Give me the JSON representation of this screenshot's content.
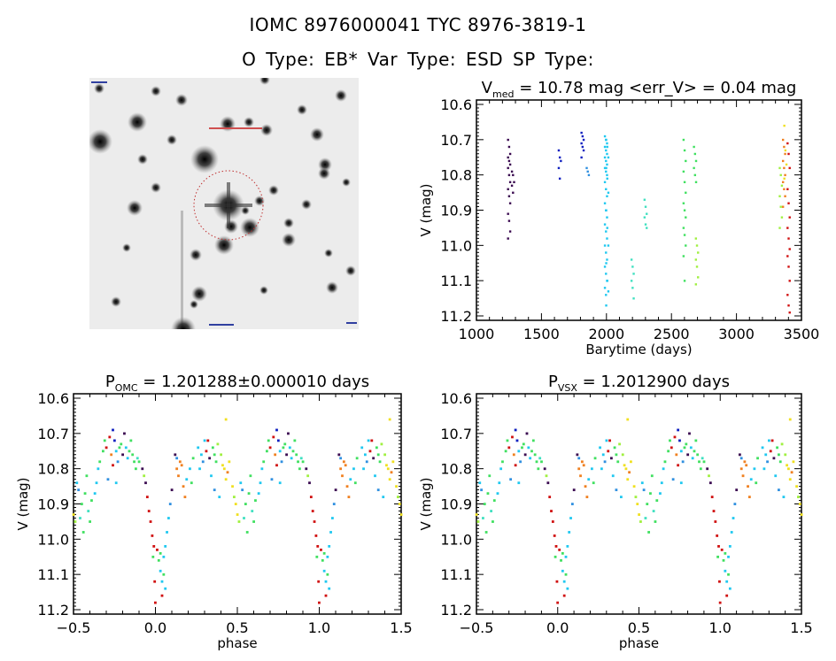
{
  "header": {
    "title_line1": "IOMC 8976000041    TYC 8976-3819-1",
    "title_line2": "O Type: EB*  Var Type: ESD  SP Type:"
  },
  "image_panel": {
    "description_label": "finding chart with target circled"
  },
  "colors": [
    "#3a0a50",
    "#1020c0",
    "#20c8f0",
    "#3090e0",
    "#40e0c0",
    "#40e060",
    "#a0f040",
    "#f0e020",
    "#f08020",
    "#d01010"
  ],
  "chart_data": [
    {
      "type": "scatter",
      "title_main": "V",
      "title_sub": "med",
      "title_rest": " = 10.78 mag <err_V> = 0.04 mag",
      "xlabel": "Barytime (days)",
      "ylabel": "V (mag)",
      "xlim": [
        1000,
        3500
      ],
      "ylim": [
        11.2,
        10.6
      ],
      "y_inverted": true,
      "xticks": [
        1000,
        1500,
        2000,
        2500,
        3000,
        3500
      ],
      "yticks": [
        "10.6",
        "10.7",
        "10.8",
        "10.9",
        "11.0",
        "11.1",
        "11.2"
      ],
      "groups": [
        {
          "t": 1250,
          "color": 0,
          "mags": [
            10.7,
            10.72,
            10.74,
            10.75,
            10.76,
            10.77,
            10.78,
            10.8,
            10.82,
            10.84,
            10.86,
            10.88,
            10.91,
            10.93,
            10.96,
            10.98
          ]
        },
        {
          "t": 1280,
          "color": 0,
          "mags": [
            10.79,
            10.8,
            10.82,
            10.83,
            10.85
          ]
        },
        {
          "t": 1640,
          "color": 1,
          "mags": [
            10.73,
            10.75,
            10.76,
            10.78,
            10.81
          ]
        },
        {
          "t": 1815,
          "color": 1,
          "mags": [
            10.68,
            10.69,
            10.7,
            10.71,
            10.72,
            10.73,
            10.75
          ]
        },
        {
          "t": 1855,
          "color": 3,
          "mags": [
            10.78,
            10.79,
            10.8
          ]
        },
        {
          "t": 1995,
          "color": 2,
          "mags": [
            10.69,
            10.7,
            10.71,
            10.72,
            10.73,
            10.74,
            10.75,
            10.76,
            10.77,
            10.78,
            10.79,
            10.8,
            10.82,
            10.84,
            10.86,
            10.88,
            10.9,
            10.92,
            10.94,
            10.96,
            10.98,
            11.0,
            11.02,
            11.04,
            11.06,
            11.08,
            11.1,
            11.12,
            11.14
          ]
        },
        {
          "t": 2005,
          "color": 2,
          "mags": [
            10.7,
            10.72,
            10.75,
            10.78,
            10.81,
            10.85,
            10.9,
            10.95,
            11.0,
            11.05,
            11.1,
            11.13,
            11.17
          ]
        },
        {
          "t": 2200,
          "color": 4,
          "mags": [
            11.04,
            11.06,
            11.08,
            11.1,
            11.12,
            11.15
          ]
        },
        {
          "t": 2300,
          "color": 4,
          "mags": [
            10.87,
            10.89,
            10.91,
            10.92,
            10.94,
            10.95
          ]
        },
        {
          "t": 2600,
          "color": 5,
          "mags": [
            10.7,
            10.73,
            10.76,
            10.79,
            10.82,
            10.85,
            10.88,
            10.9,
            10.92,
            10.95,
            10.97,
            11.0,
            11.03,
            11.1
          ]
        },
        {
          "t": 2680,
          "color": 5,
          "mags": [
            10.72,
            10.74,
            10.76,
            10.78,
            10.8,
            10.82
          ]
        },
        {
          "t": 2695,
          "color": 6,
          "mags": [
            10.98,
            11.0,
            11.02,
            11.04,
            11.06,
            11.09,
            11.11
          ]
        },
        {
          "t": 3340,
          "color": 6,
          "mags": [
            10.78,
            10.8,
            10.83,
            10.86,
            10.89,
            10.92,
            10.95
          ]
        },
        {
          "t": 3365,
          "color": 8,
          "mags": [
            10.7,
            10.72,
            10.74,
            10.76,
            10.78,
            10.8,
            10.82,
            10.84,
            10.86,
            10.89
          ]
        },
        {
          "t": 3375,
          "color": 7,
          "mags": [
            10.66,
            10.73,
            10.77,
            10.81
          ]
        },
        {
          "t": 3400,
          "color": 9,
          "mags": [
            10.71,
            10.74,
            10.78,
            10.84,
            10.88,
            10.92,
            10.95,
            10.98,
            11.01,
            11.03,
            11.06,
            11.1,
            11.14,
            11.17,
            11.19
          ]
        }
      ]
    },
    {
      "type": "scatter",
      "title_main": "P",
      "title_sub": "OMC",
      "title_rest": " = 1.201288±0.000010 days",
      "xlabel": "phase",
      "ylabel": "V (mag)",
      "xlim": [
        -0.5,
        1.5
      ],
      "ylim": [
        11.2,
        10.6
      ],
      "y_inverted": true,
      "xticks": [
        "-0.5",
        "0.0",
        "0.5",
        "1.0",
        "1.5"
      ],
      "yticks": [
        "10.6",
        "10.7",
        "10.8",
        "10.9",
        "11.0",
        "11.1",
        "11.2"
      ],
      "points": [
        [
          0.26,
          10.74,
          2
        ],
        [
          0.28,
          10.76,
          2
        ],
        [
          0.3,
          10.72,
          2
        ],
        [
          0.29,
          10.78,
          3
        ],
        [
          0.31,
          10.75,
          9
        ],
        [
          0.32,
          10.72,
          9
        ],
        [
          0.33,
          10.77,
          0
        ],
        [
          0.35,
          10.74,
          5
        ],
        [
          0.36,
          10.76,
          5
        ],
        [
          0.37,
          10.78,
          5
        ],
        [
          0.38,
          10.73,
          6
        ],
        [
          0.4,
          10.76,
          6
        ],
        [
          0.41,
          10.79,
          7
        ],
        [
          0.42,
          10.8,
          7
        ],
        [
          0.43,
          10.83,
          7
        ],
        [
          0.44,
          10.81,
          8
        ],
        [
          0.45,
          10.78,
          7
        ],
        [
          0.34,
          10.82,
          2
        ],
        [
          0.36,
          10.86,
          3
        ],
        [
          0.39,
          10.88,
          2
        ],
        [
          0.27,
          10.8,
          2
        ],
        [
          0.43,
          10.66,
          7
        ],
        [
          0.47,
          10.85,
          7
        ],
        [
          0.48,
          10.88,
          6
        ],
        [
          0.49,
          10.9,
          7
        ],
        [
          0.5,
          10.93,
          7
        ],
        [
          0.51,
          10.95,
          6
        ],
        [
          0.52,
          10.84,
          2
        ],
        [
          0.53,
          10.86,
          3
        ],
        [
          0.55,
          10.9,
          5
        ],
        [
          0.56,
          10.98,
          5
        ],
        [
          0.57,
          10.87,
          5
        ],
        [
          0.58,
          10.82,
          5
        ],
        [
          0.59,
          10.92,
          4
        ],
        [
          0.6,
          10.95,
          5
        ],
        [
          0.61,
          10.89,
          5
        ],
        [
          0.54,
          10.94,
          4
        ],
        [
          0.63,
          10.87,
          2
        ],
        [
          0.64,
          10.84,
          2
        ],
        [
          0.65,
          10.8,
          2
        ],
        [
          0.66,
          10.78,
          5
        ],
        [
          0.68,
          10.75,
          5
        ],
        [
          0.69,
          10.72,
          5
        ],
        [
          0.7,
          10.74,
          9
        ],
        [
          0.72,
          10.71,
          9
        ],
        [
          0.73,
          10.76,
          8
        ],
        [
          0.74,
          10.69,
          1
        ],
        [
          0.75,
          10.72,
          1
        ],
        [
          0.76,
          10.75,
          2
        ],
        [
          0.77,
          10.78,
          3
        ],
        [
          0.78,
          10.74,
          5
        ],
        [
          0.79,
          10.73,
          5
        ],
        [
          0.8,
          10.76,
          0
        ],
        [
          0.81,
          10.7,
          0
        ],
        [
          0.82,
          10.74,
          2
        ],
        [
          0.83,
          10.77,
          2
        ],
        [
          0.84,
          10.75,
          5
        ],
        [
          0.85,
          10.72,
          5
        ],
        [
          0.86,
          10.76,
          5
        ],
        [
          0.87,
          10.78,
          5
        ],
        [
          0.88,
          10.8,
          5
        ],
        [
          0.89,
          10.77,
          4
        ],
        [
          0.71,
          10.83,
          3
        ],
        [
          0.76,
          10.84,
          2
        ],
        [
          0.74,
          10.79,
          9
        ],
        [
          0.9,
          10.78,
          5
        ],
        [
          0.92,
          10.8,
          0
        ],
        [
          0.93,
          10.82,
          6
        ],
        [
          0.94,
          10.84,
          0
        ],
        [
          0.95,
          10.88,
          9
        ],
        [
          0.96,
          10.92,
          9
        ],
        [
          0.97,
          10.95,
          9
        ],
        [
          0.98,
          10.99,
          9
        ],
        [
          0.99,
          11.02,
          9
        ],
        [
          0.985,
          11.05,
          5
        ],
        [
          0.995,
          11.12,
          9
        ],
        [
          0.999,
          11.18,
          9
        ],
        [
          0.01,
          11.03,
          9
        ],
        [
          0.02,
          11.06,
          5
        ],
        [
          0.03,
          11.09,
          2
        ],
        [
          0.04,
          11.12,
          2
        ],
        [
          0.05,
          11.1,
          5
        ],
        [
          0.03,
          11.04,
          5
        ],
        [
          0.05,
          11.05,
          2
        ],
        [
          0.06,
          11.02,
          2
        ],
        [
          0.07,
          10.98,
          2
        ],
        [
          0.08,
          10.94,
          2
        ],
        [
          0.09,
          10.9,
          3
        ],
        [
          0.1,
          10.86,
          0
        ],
        [
          0.06,
          11.14,
          2
        ],
        [
          0.04,
          11.16,
          9
        ],
        [
          0.12,
          10.76,
          0
        ],
        [
          0.13,
          10.8,
          8
        ],
        [
          0.14,
          10.82,
          8
        ],
        [
          0.15,
          10.78,
          8
        ],
        [
          0.16,
          10.79,
          8
        ],
        [
          0.17,
          10.85,
          8
        ],
        [
          0.18,
          10.88,
          8
        ],
        [
          0.13,
          10.77,
          3
        ],
        [
          0.19,
          10.83,
          2
        ],
        [
          0.21,
          10.8,
          2
        ],
        [
          0.23,
          10.77,
          5
        ],
        [
          0.22,
          10.84,
          5
        ]
      ]
    },
    {
      "type": "scatter",
      "title_main": "P",
      "title_sub": "VSX",
      "title_rest": " = 1.2012900 days",
      "xlabel": "phase",
      "ylabel": "V (mag)",
      "xlim": [
        -0.5,
        1.5
      ],
      "ylim": [
        11.2,
        10.6
      ],
      "y_inverted": true,
      "xticks": [
        "-0.5",
        "0.0",
        "0.5",
        "1.0",
        "1.5"
      ],
      "yticks": [
        "10.6",
        "10.7",
        "10.8",
        "10.9",
        "11.0",
        "11.1",
        "11.2"
      ],
      "points_same_as_chart": 1
    }
  ]
}
